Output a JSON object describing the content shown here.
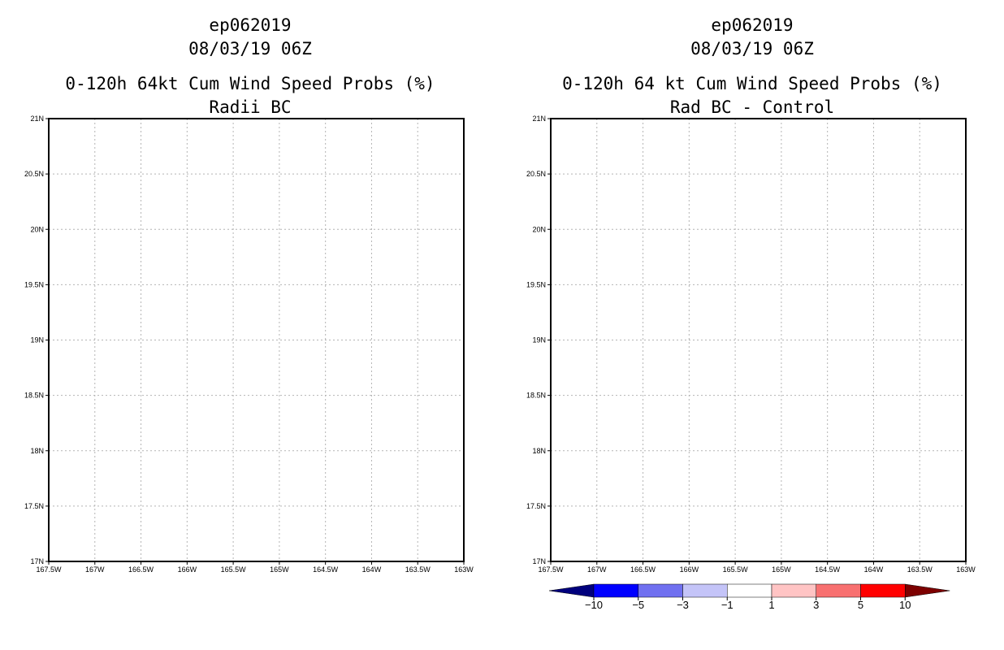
{
  "chart_data": [
    {
      "type": "heatmap",
      "title_lines": [
        "ep062019",
        "08/03/19 06Z",
        "0-120h 64kt Cum Wind Speed Probs (%)",
        "Radii BC"
      ],
      "x_range": [
        -167.5,
        -163
      ],
      "y_range": [
        17,
        21
      ],
      "x_ticks": [
        "167.5W",
        "167W",
        "166.5W",
        "166W",
        "165.5W",
        "165W",
        "164.5W",
        "164W",
        "163.5W",
        "163W"
      ],
      "y_ticks": [
        "17N",
        "17.5N",
        "18N",
        "18.5N",
        "19N",
        "19.5N",
        "20N",
        "20.5N",
        "21N"
      ],
      "grid": true,
      "values": []
    },
    {
      "type": "heatmap",
      "title_lines": [
        "ep062019",
        "08/03/19 06Z",
        "0-120h 64 kt Cum Wind Speed Probs (%)",
        "Rad BC - Control"
      ],
      "x_range": [
        -167.5,
        -163
      ],
      "y_range": [
        17,
        21
      ],
      "x_ticks": [
        "167.5W",
        "167W",
        "166.5W",
        "166W",
        "165.5W",
        "165W",
        "164.5W",
        "164W",
        "163.5W",
        "163W"
      ],
      "y_ticks": [
        "17N",
        "17.5N",
        "18N",
        "18.5N",
        "19N",
        "19.5N",
        "20N",
        "20.5N",
        "21N"
      ],
      "grid": true,
      "values": [],
      "colorbar": {
        "labels": [
          "-10",
          "-5",
          "-3",
          "-1",
          "1",
          "3",
          "5",
          "10"
        ],
        "colors": [
          "#00007d",
          "#0000ff",
          "#7070f0",
          "#c4c4f8",
          "#ffffff",
          "#ffc4c4",
          "#f87070",
          "#ff0000",
          "#7d0000"
        ]
      }
    }
  ]
}
